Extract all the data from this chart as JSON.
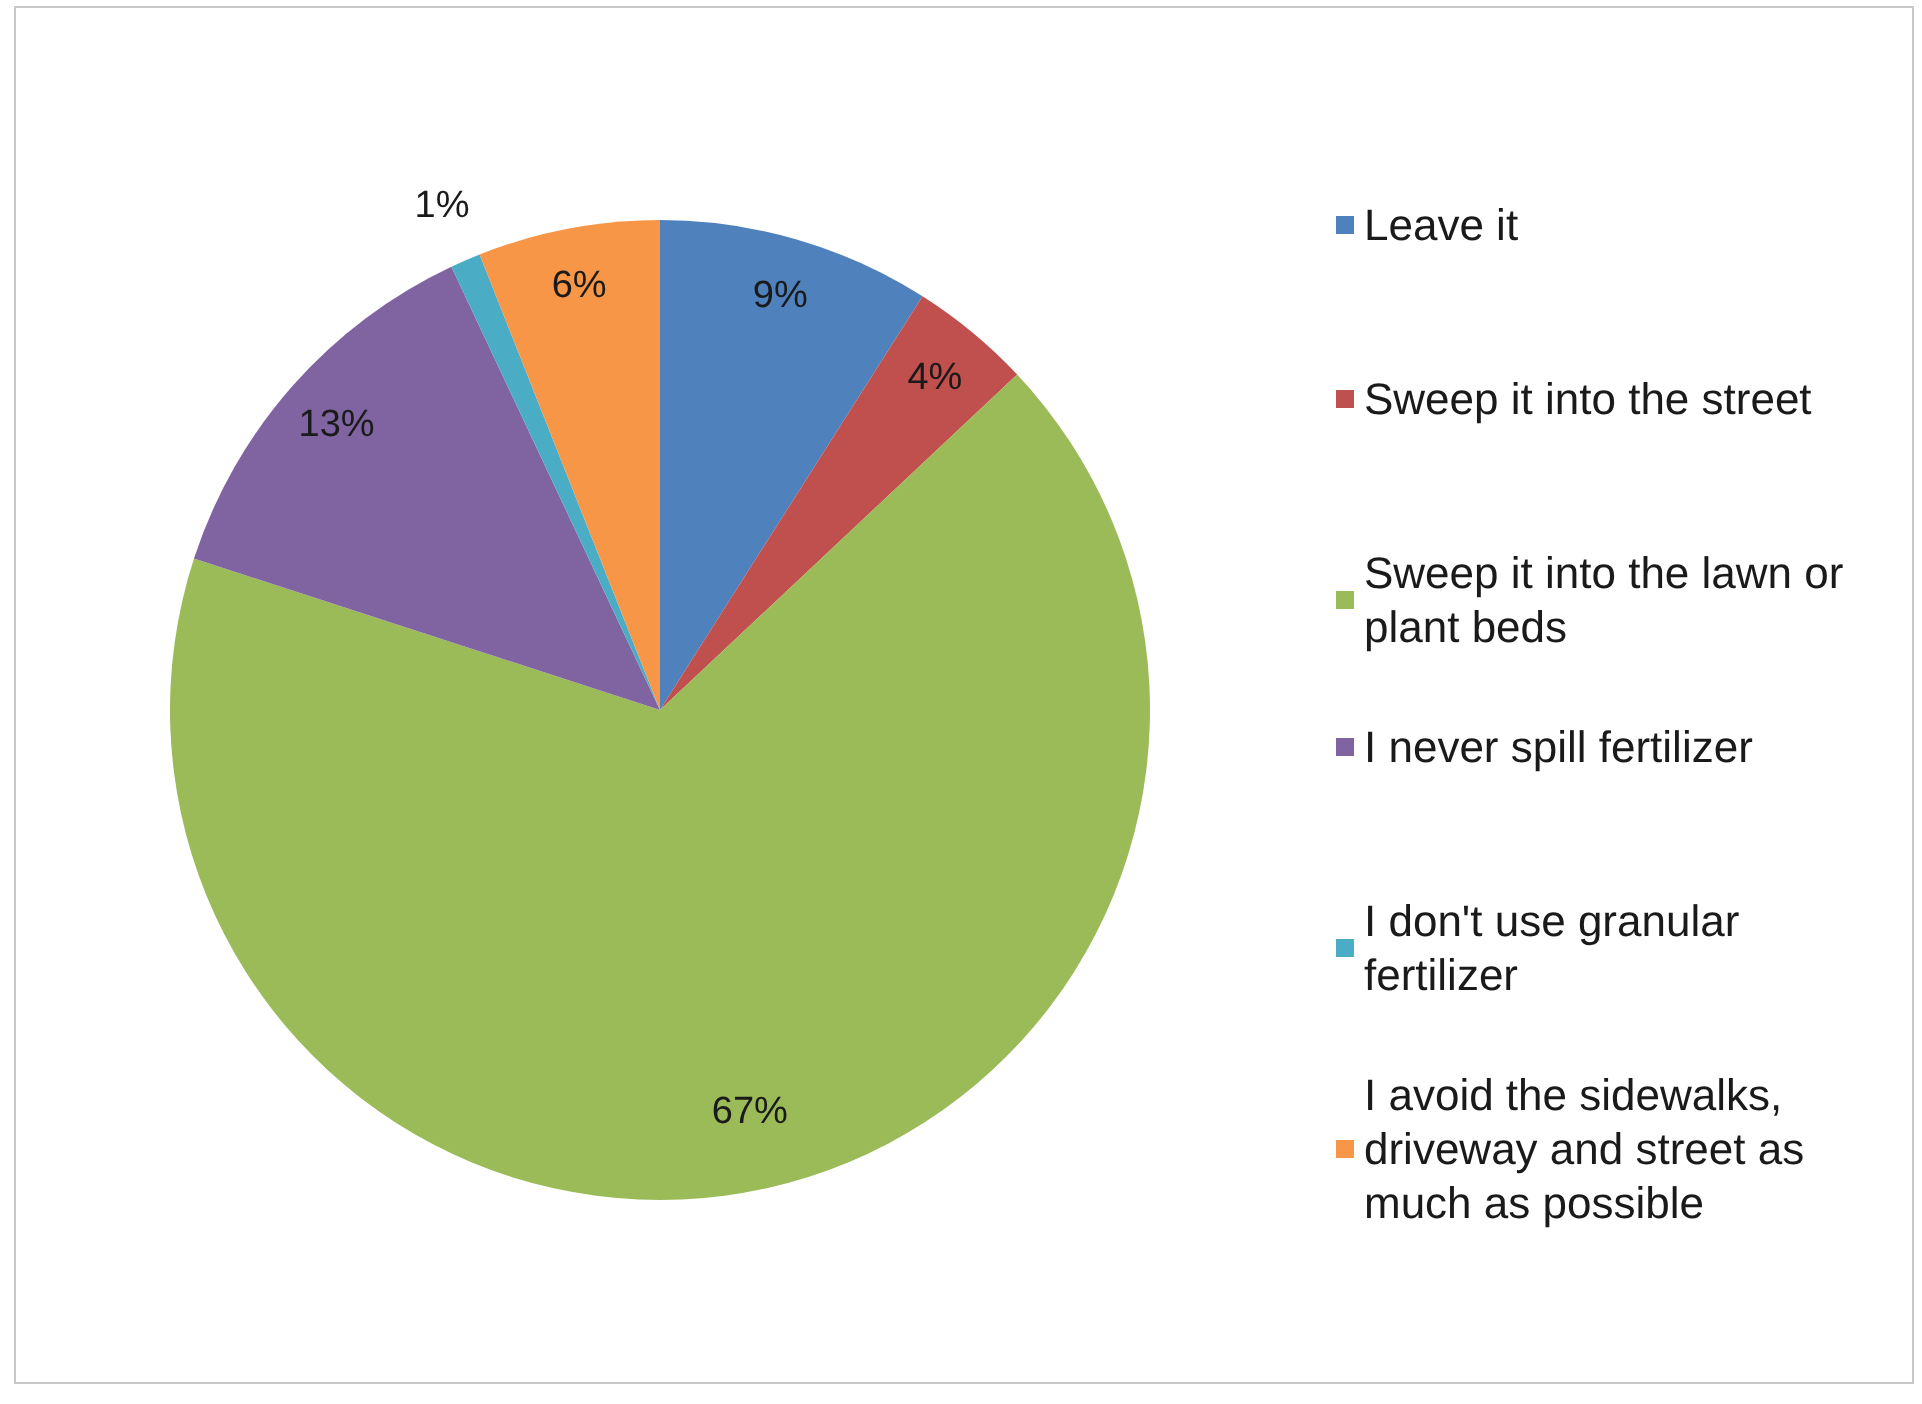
{
  "chart_data": {
    "type": "pie",
    "categories": [
      "Leave it",
      "Sweep it into the street",
      "Sweep it into the lawn or plant beds",
      "I never spill fertilizer",
      "I don't use granular fertilizer",
      "I avoid the sidewalks, driveway and street as much as possible"
    ],
    "values": [
      9,
      4,
      67,
      13,
      1,
      6
    ],
    "colors": [
      "#4f81bd",
      "#c0504d",
      "#9bbb59",
      "#8064a2",
      "#4bacc6",
      "#f79646"
    ],
    "value_labels": [
      "9%",
      "4%",
      "67%",
      "13%",
      "1%",
      "6%"
    ],
    "legend": "right"
  }
}
